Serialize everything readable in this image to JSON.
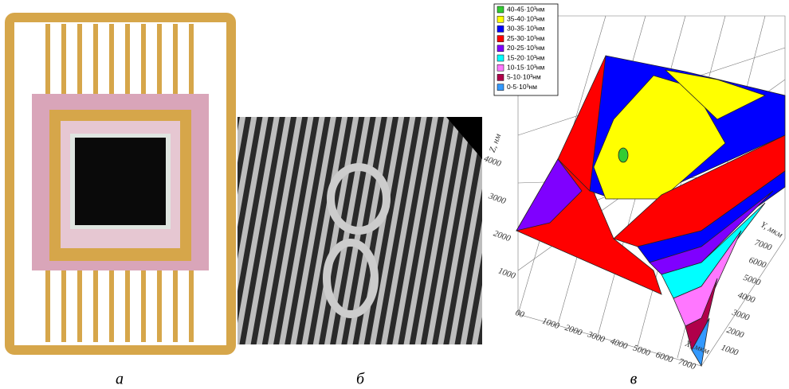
{
  "panels": [
    {
      "label": "а"
    },
    {
      "label": "б"
    },
    {
      "label": "в"
    }
  ],
  "plot": {
    "legend": [
      {
        "label": "40-45·10³нм",
        "color": "#33cc33"
      },
      {
        "label": "35-40·10³нм",
        "color": "#ffff00"
      },
      {
        "label": "30-35·10³нм",
        "color": "#0000ff"
      },
      {
        "label": "25-30·10³нм",
        "color": "#ff0000"
      },
      {
        "label": "20-25·10³нм",
        "color": "#7f00ff"
      },
      {
        "label": "15-20·10³нм",
        "color": "#00ffff"
      },
      {
        "label": "10-15·10³нм",
        "color": "#ff77ff"
      },
      {
        "label": "5-10·10³нм",
        "color": "#b0004a"
      },
      {
        "label": "0-5·10³нм",
        "color": "#3399ff"
      }
    ],
    "z_axis": {
      "title": "Z, нм",
      "ticks": [
        "0",
        "1000",
        "2000",
        "3000",
        "4000"
      ]
    },
    "x_axis": {
      "title": "X, мкм",
      "ticks": [
        "0",
        "1000",
        "2000",
        "3000",
        "4000",
        "5000",
        "6000",
        "7000"
      ]
    },
    "y_axis": {
      "title": "Y, мкм",
      "ticks": [
        "1000",
        "2000",
        "3000",
        "4000",
        "5000",
        "6000",
        "7000"
      ]
    }
  }
}
